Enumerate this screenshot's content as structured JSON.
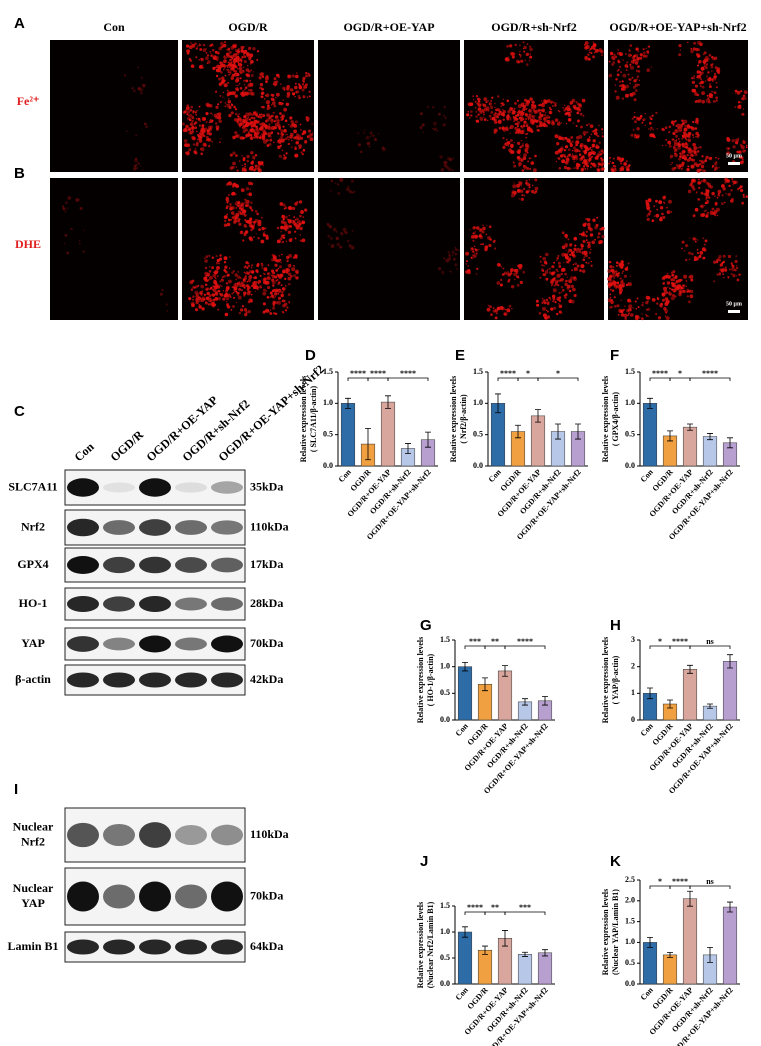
{
  "microscopy": {
    "groups": [
      "Con",
      "OGD/R",
      "OGD/R+OE-YAP",
      "OGD/R+sh-Nrf2",
      "OGD/R+OE-YAP+sh-Nrf2"
    ],
    "rows": [
      {
        "panel": "A",
        "stain": "Fe²⁺"
      },
      {
        "panel": "B",
        "stain": "DHE"
      }
    ],
    "scale_bar": "50 μm"
  },
  "western_blot": {
    "panel": "C",
    "lanes": [
      "Con",
      "OGD/R",
      "OGD/R+OE-YAP",
      "OGD/R+sh-Nrf2",
      "OGD/R+OE-YAP+sh-Nrf2"
    ],
    "rows": [
      {
        "label": "SLC7A11",
        "size": "35kDa"
      },
      {
        "label": "Nrf2",
        "size": "110kDa"
      },
      {
        "label": "GPX4",
        "size": "17kDa"
      },
      {
        "label": "HO-1",
        "size": "28kDa"
      },
      {
        "label": "YAP",
        "size": "70kDa"
      },
      {
        "label": "β-actin",
        "size": "42kDa"
      }
    ]
  },
  "nuclear_blot": {
    "panel": "I",
    "rows": [
      {
        "label": [
          "Nuclear",
          "Nrf2"
        ],
        "size": "110kDa"
      },
      {
        "label": [
          "Nuclear",
          "YAP"
        ],
        "size": "70kDa"
      },
      {
        "label": [
          "Lamin B1"
        ],
        "size": "64kDa"
      }
    ]
  },
  "chart_data": [
    {
      "type": "bar",
      "panel": "D",
      "ylabel": [
        "Relative expression levels",
        "( SLC7A11/β-actin)"
      ],
      "categories": [
        "Con",
        "OGD/R",
        "OGD/R+OE-YAP",
        "OGD/R+sh-Nrf2",
        "OGD/R+OE-YAP+sh-Nrf2"
      ],
      "values": [
        1.0,
        0.35,
        1.02,
        0.28,
        0.42
      ],
      "errors": [
        0.08,
        0.25,
        0.1,
        0.08,
        0.12
      ],
      "colors": [
        "#2e6ca8",
        "#f0a041",
        "#d8a69c",
        "#b6c7e8",
        "#b79fcf"
      ],
      "ylim": [
        0,
        1.5
      ],
      "yticks": [
        {
          "value": 0,
          "label": "0.0"
        },
        {
          "value": 0.5,
          "label": "0.5"
        },
        {
          "value": 1,
          "label": "1.0"
        },
        {
          "value": 1.5,
          "label": "1.5"
        }
      ],
      "significance": [
        "****",
        "****",
        "****"
      ]
    },
    {
      "type": "bar",
      "panel": "E",
      "ylabel": [
        "Relative expression levels",
        "( Nrf2/β-actin)"
      ],
      "categories": [
        "Con",
        "OGD/R",
        "OGD/R+OE-YAP",
        "OGD/R+sh-Nrf2",
        "OGD/R+OE-YAP+sh-Nrf2"
      ],
      "values": [
        1.0,
        0.55,
        0.8,
        0.55,
        0.55
      ],
      "errors": [
        0.15,
        0.1,
        0.1,
        0.12,
        0.12
      ],
      "colors": [
        "#2e6ca8",
        "#f0a041",
        "#d8a69c",
        "#b6c7e8",
        "#b79fcf"
      ],
      "ylim": [
        0,
        1.5
      ],
      "yticks": [
        {
          "value": 0,
          "label": "0.0"
        },
        {
          "value": 0.5,
          "label": "0.5"
        },
        {
          "value": 1,
          "label": "1.0"
        },
        {
          "value": 1.5,
          "label": "1.5"
        }
      ],
      "significance": [
        "****",
        "*",
        "*"
      ]
    },
    {
      "type": "bar",
      "panel": "F",
      "ylabel": [
        "Relative expression levels",
        "( GPX4/β-actin)"
      ],
      "categories": [
        "Con",
        "OGD/R",
        "OGD/R+OE-YAP",
        "OGD/R+sh-Nrf2",
        "OGD/R+OE-YAP+sh-Nrf2"
      ],
      "values": [
        1.0,
        0.48,
        0.62,
        0.47,
        0.37
      ],
      "errors": [
        0.08,
        0.08,
        0.05,
        0.05,
        0.08
      ],
      "colors": [
        "#2e6ca8",
        "#f0a041",
        "#d8a69c",
        "#b6c7e8",
        "#b79fcf"
      ],
      "ylim": [
        0,
        1.5
      ],
      "yticks": [
        {
          "value": 0,
          "label": "0.0"
        },
        {
          "value": 0.5,
          "label": "0.5"
        },
        {
          "value": 1,
          "label": "1.0"
        },
        {
          "value": 1.5,
          "label": "1.5"
        }
      ],
      "significance": [
        "****",
        "*",
        "****"
      ]
    },
    {
      "type": "bar",
      "panel": "G",
      "ylabel": [
        "Relative expression levels",
        "( HO-1/β-actin)"
      ],
      "categories": [
        "Con",
        "OGD/R",
        "OGD/R+OE-YAP",
        "OGD/R+sh-Nrf2",
        "OGD/R+OE-YAP+sh-Nrf2"
      ],
      "values": [
        1.0,
        0.67,
        0.92,
        0.34,
        0.36
      ],
      "errors": [
        0.08,
        0.12,
        0.1,
        0.06,
        0.08
      ],
      "colors": [
        "#2e6ca8",
        "#f0a041",
        "#d8a69c",
        "#b6c7e8",
        "#b79fcf"
      ],
      "ylim": [
        0,
        1.5
      ],
      "yticks": [
        {
          "value": 0,
          "label": "0.0"
        },
        {
          "value": 0.5,
          "label": "0.5"
        },
        {
          "value": 1,
          "label": "1.0"
        },
        {
          "value": 1.5,
          "label": "1.5"
        }
      ],
      "significance": [
        "***",
        "**",
        "****"
      ]
    },
    {
      "type": "bar",
      "panel": "H",
      "ylabel": [
        "Relative expression levels",
        "( YAP/β-actin)"
      ],
      "categories": [
        "Con",
        "OGD/R",
        "OGD/R+OE-YAP",
        "OGD/R+sh-Nrf2",
        "OGD/R+OE-YAP+sh-Nrf2"
      ],
      "values": [
        1.0,
        0.6,
        1.9,
        0.52,
        2.2
      ],
      "errors": [
        0.2,
        0.15,
        0.15,
        0.08,
        0.25
      ],
      "colors": [
        "#2e6ca8",
        "#f0a041",
        "#d8a69c",
        "#b6c7e8",
        "#b79fcf"
      ],
      "ylim": [
        0,
        3
      ],
      "yticks": [
        0,
        1,
        2,
        3
      ],
      "significance": [
        "*",
        "****",
        "ns"
      ]
    },
    {
      "type": "bar",
      "panel": "J",
      "ylabel": [
        "Relative expression levels",
        "(Nuclear Nrf2/Lamin B1)"
      ],
      "categories": [
        "Con",
        "OGD/R",
        "OGD/R+OE-YAP",
        "OGD/R+sh-Nrf2",
        "OGD/R+OE-YAP+sh-Nrf2"
      ],
      "values": [
        1.0,
        0.65,
        0.88,
        0.57,
        0.6
      ],
      "errors": [
        0.1,
        0.08,
        0.15,
        0.04,
        0.06
      ],
      "colors": [
        "#2e6ca8",
        "#f0a041",
        "#d8a69c",
        "#b6c7e8",
        "#b79fcf"
      ],
      "ylim": [
        0,
        1.5
      ],
      "yticks": [
        {
          "value": 0,
          "label": "0.0"
        },
        {
          "value": 0.5,
          "label": "0.5"
        },
        {
          "value": 1,
          "label": "1.0"
        },
        {
          "value": 1.5,
          "label": "1.5"
        }
      ],
      "significance": [
        "****",
        "**",
        "***"
      ]
    },
    {
      "type": "bar",
      "panel": "K",
      "ylabel": [
        "Relative expression levels",
        "(Nuclear YAP/Lamin B1)"
      ],
      "categories": [
        "Con",
        "OGD/R",
        "OGD/R+OE-YAP",
        "OGD/R+sh-Nrf2",
        "OGD/R+OE-YAP+sh-Nrf2"
      ],
      "values": [
        1.0,
        0.7,
        2.05,
        0.7,
        1.85
      ],
      "errors": [
        0.12,
        0.06,
        0.18,
        0.18,
        0.12
      ],
      "colors": [
        "#2e6ca8",
        "#f0a041",
        "#d8a69c",
        "#b6c7e8",
        "#b79fcf"
      ],
      "ylim": [
        0,
        2.5
      ],
      "yticks": [
        {
          "value": 0,
          "label": "0.0"
        },
        {
          "value": 0.5,
          "label": "0.5"
        },
        {
          "value": 1,
          "label": "1.0"
        },
        {
          "value": 1.5,
          "label": "1.5"
        },
        {
          "value": 2,
          "label": "2.0"
        },
        {
          "value": 2.5,
          "label": "2.5"
        }
      ],
      "significance": [
        "*",
        "****",
        "ns"
      ]
    }
  ]
}
